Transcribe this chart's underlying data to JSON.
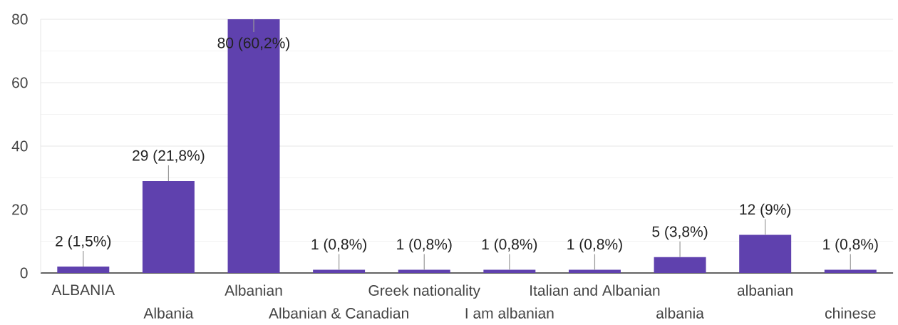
{
  "chart_data": {
    "type": "bar",
    "categories": [
      "ALBANIA",
      "Albania",
      "Albanian",
      "Albanian & Canadian",
      "Greek nationality",
      "I am albanian",
      "Italian and Albanian",
      "albania",
      "albanian",
      "chinese"
    ],
    "values": [
      2,
      29,
      80,
      1,
      1,
      1,
      1,
      5,
      12,
      1
    ],
    "color": "#5f41ae",
    "value_labels": [
      "2 (1,5%)",
      "29 (21,8%)",
      "80 (60,2%)",
      "1 (0,8%)",
      "1 (0,8%)",
      "1 (0,8%)",
      "1 (0,8%)",
      "5 (3,8%)",
      "12 (9%)",
      "1 (0,8%)"
    ],
    "ylim": [
      0,
      80
    ],
    "yticks": [
      0,
      {
        "value": 10,
        "label": null
      },
      20,
      {
        "value": 30,
        "label": null
      },
      40,
      {
        "value": 50,
        "label": null
      },
      60,
      {
        "value": 70,
        "label": null
      },
      80
    ],
    "grid": "y"
  }
}
